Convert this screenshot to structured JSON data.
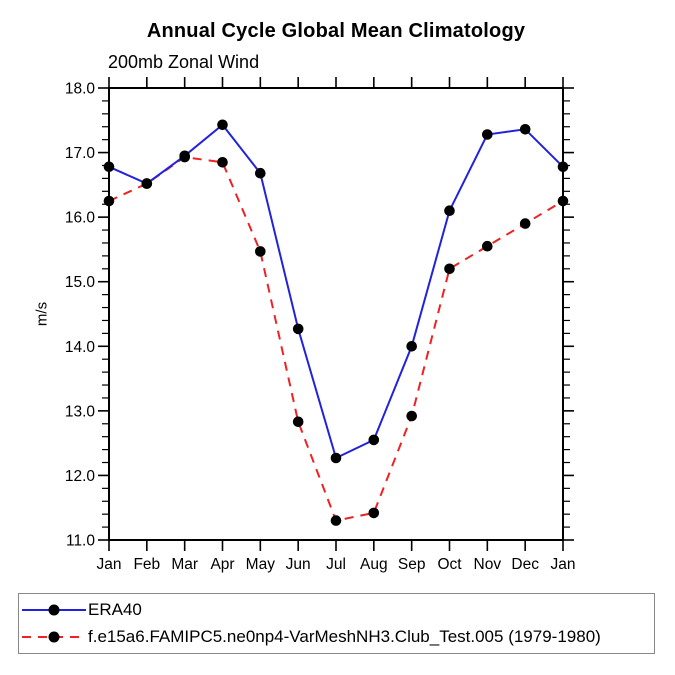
{
  "chart_data": {
    "type": "line",
    "title": "Annual Cycle Global Mean Climatology",
    "subtitle": "200mb Zonal Wind",
    "ylabel": "m/s",
    "categories": [
      "Jan",
      "Feb",
      "Mar",
      "Apr",
      "May",
      "Jun",
      "Jul",
      "Aug",
      "Sep",
      "Oct",
      "Nov",
      "Dec",
      "Jan"
    ],
    "ylim": [
      11.0,
      18.0
    ],
    "ytick_major_step": 1.0,
    "ytick_minor_step": 0.2,
    "ytick_labels": [
      "11.0",
      "12.0",
      "13.0",
      "14.0",
      "15.0",
      "16.0",
      "17.0",
      "18.0"
    ],
    "grid": false,
    "legend_position": "below-left",
    "frame_color": "#000000",
    "series": [
      {
        "name": "ERA40",
        "color": "#2222dd",
        "line_style": "solid",
        "marker": "filled-circle",
        "marker_color": "#000000",
        "values": [
          16.78,
          16.52,
          16.95,
          17.43,
          16.68,
          14.27,
          12.27,
          12.55,
          14.0,
          16.1,
          17.28,
          17.36,
          16.78
        ]
      },
      {
        "name": "f.e15a6.FAMIPC5.ne0np4-VarMeshNH3.Club_Test.005 (1979-1980)",
        "color": "#ee2222",
        "line_style": "dashed",
        "marker": "filled-circle",
        "marker_color": "#000000",
        "values": [
          16.25,
          16.52,
          16.93,
          16.85,
          15.47,
          12.83,
          11.3,
          11.42,
          12.92,
          15.2,
          15.55,
          15.9,
          16.25
        ]
      }
    ]
  }
}
